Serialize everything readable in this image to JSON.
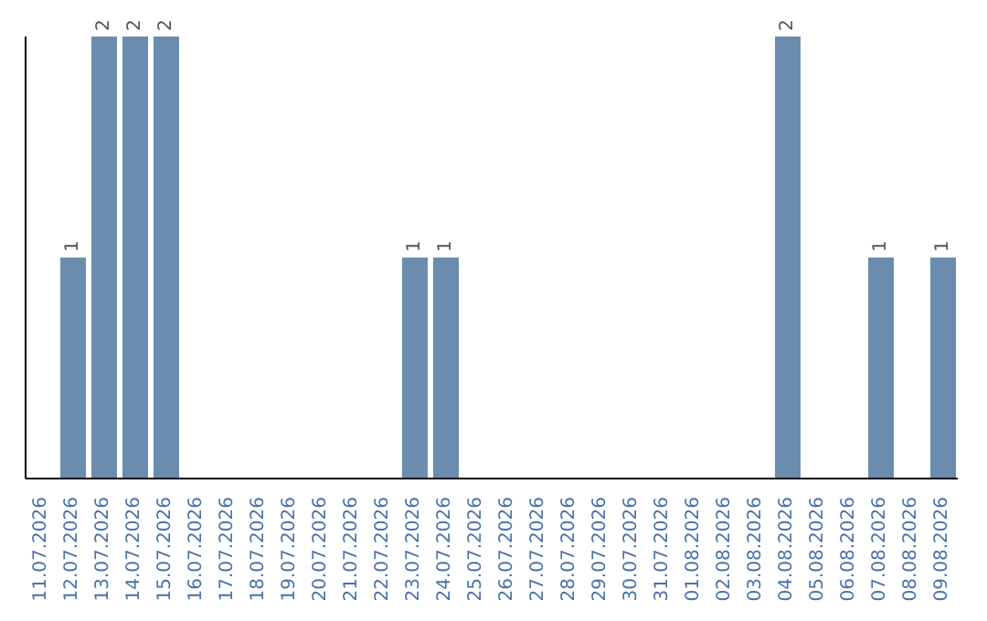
{
  "chart_data": {
    "type": "bar",
    "categories": [
      "11.07.2026",
      "12.07.2026",
      "13.07.2026",
      "14.07.2026",
      "15.07.2026",
      "16.07.2026",
      "17.07.2026",
      "18.07.2026",
      "19.07.2026",
      "20.07.2026",
      "21.07.2026",
      "22.07.2026",
      "23.07.2026",
      "24.07.2026",
      "25.07.2026",
      "26.07.2026",
      "27.07.2026",
      "28.07.2026",
      "29.07.2026",
      "30.07.2026",
      "31.07.2026",
      "01.08.2026",
      "02.08.2026",
      "03.08.2026",
      "04.08.2026",
      "05.08.2026",
      "06.08.2026",
      "07.08.2026",
      "08.08.2026",
      "09.08.2026"
    ],
    "values": [
      0,
      1,
      2,
      2,
      2,
      0,
      0,
      0,
      0,
      0,
      0,
      0,
      1,
      1,
      0,
      0,
      0,
      0,
      0,
      0,
      0,
      0,
      0,
      0,
      2,
      0,
      0,
      1,
      0,
      1
    ],
    "value_labels": [
      null,
      "1",
      "2",
      "2",
      "2",
      null,
      null,
      null,
      null,
      null,
      null,
      null,
      "1",
      "1",
      null,
      null,
      null,
      null,
      null,
      null,
      null,
      null,
      null,
      null,
      "2",
      null,
      null,
      "1",
      null,
      "1"
    ],
    "color": "#6a8caf",
    "tick_labels": "x",
    "grid": false,
    "legend": false
  }
}
